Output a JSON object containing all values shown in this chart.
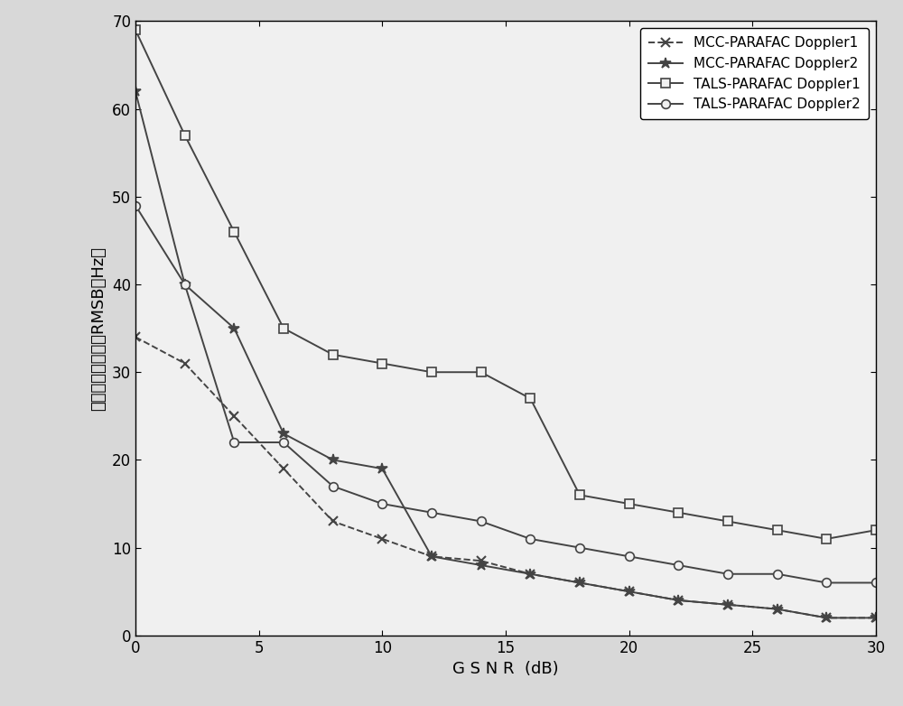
{
  "title": "",
  "xlabel": "G S N R  (dB)",
  "ylabel_line1": "多普勒频移估计的RMSB（Hz）",
  "xlim": [
    0,
    30
  ],
  "ylim": [
    0,
    70
  ],
  "xticks": [
    0,
    5,
    10,
    15,
    20,
    25,
    30
  ],
  "yticks": [
    0,
    10,
    20,
    30,
    40,
    50,
    60,
    70
  ],
  "x_values": [
    0,
    2,
    4,
    6,
    8,
    10,
    12,
    14,
    16,
    18,
    20,
    22,
    24,
    26,
    28,
    30
  ],
  "mcc_doppler1": [
    34,
    31,
    25,
    19,
    13,
    11,
    9,
    8.5,
    7,
    6,
    5,
    4,
    3.5,
    3,
    2,
    2
  ],
  "mcc_doppler2": [
    62,
    40,
    35,
    23,
    20,
    19,
    9,
    8,
    7,
    6,
    5,
    4,
    3.5,
    3,
    2,
    2
  ],
  "tals_doppler1": [
    69,
    57,
    46,
    35,
    32,
    31,
    30,
    30,
    27,
    16,
    15,
    14,
    13,
    12,
    11,
    12
  ],
  "tals_doppler2": [
    49,
    40,
    22,
    22,
    17,
    15,
    14,
    13,
    11,
    10,
    9,
    8,
    7,
    7,
    6,
    6
  ],
  "line_color": "#444444",
  "background_color": "#d8d8d8",
  "plot_bg_color": "#f0f0f0",
  "linewidth": 1.4,
  "markersize": 6,
  "legend_loc": "upper right",
  "fontsize_label": 13,
  "fontsize_tick": 12,
  "fontsize_legend": 11
}
